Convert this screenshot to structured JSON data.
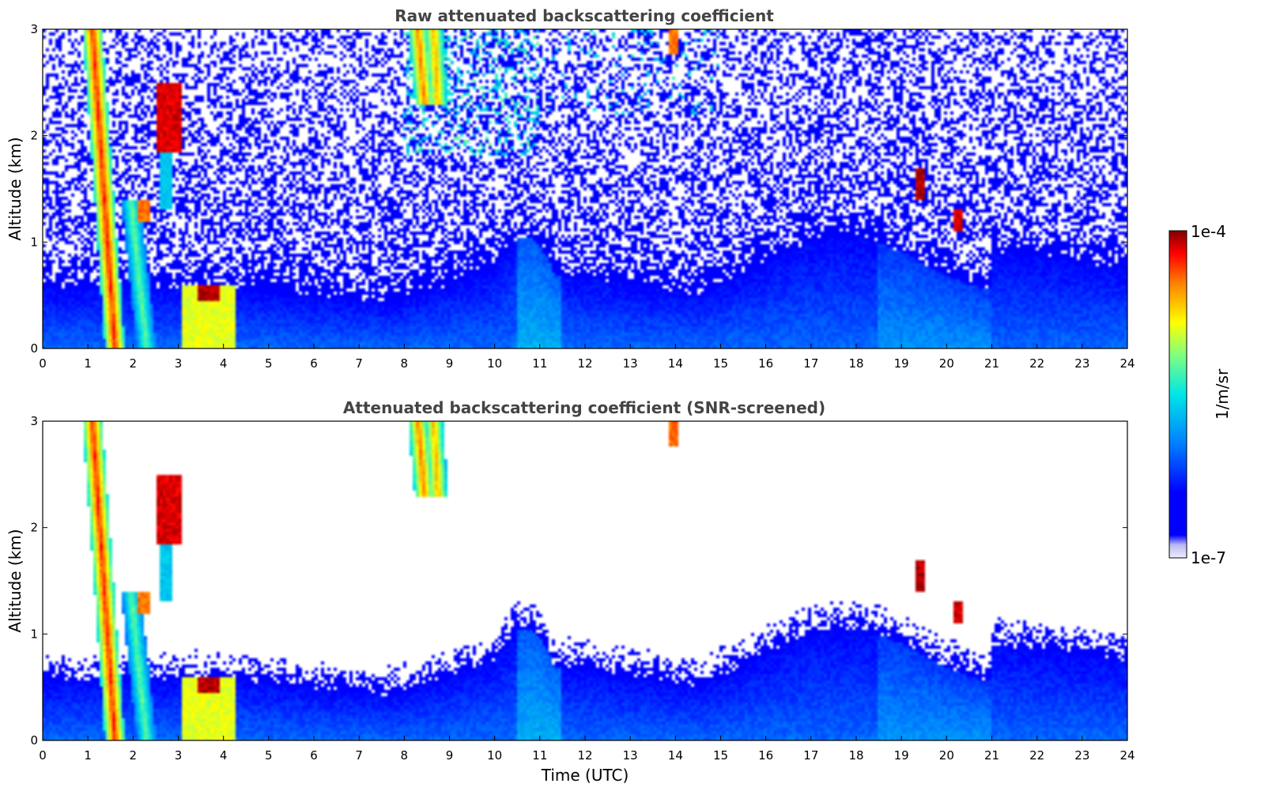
{
  "chart_data": [
    {
      "type": "heatmap",
      "title": "Raw attenuated backscattering coefficient",
      "xlabel": "",
      "ylabel": "Altitude (km)",
      "xlim": [
        0,
        24
      ],
      "ylim": [
        0,
        3
      ],
      "x_ticks": [
        "0",
        "1",
        "2",
        "3",
        "4",
        "5",
        "6",
        "7",
        "8",
        "9",
        "10",
        "11",
        "12",
        "13",
        "14",
        "15",
        "16",
        "17",
        "18",
        "19",
        "20",
        "21",
        "22",
        "23",
        "24"
      ],
      "y_ticks": [
        "0",
        "1",
        "2",
        "3"
      ],
      "screened": false,
      "features": [
        {
          "kind": "fall_streak",
          "t_top": 1.1,
          "t_bottom": 1.6,
          "z_top": 3.0,
          "z_bottom": 0.0,
          "level": 0.92
        },
        {
          "kind": "fall_streak",
          "t_top": 1.95,
          "t_bottom": 2.3,
          "z_top": 1.4,
          "z_bottom": 0.0,
          "level": 0.6
        },
        {
          "kind": "cloud",
          "t": [
            2.55,
            3.05
          ],
          "z": [
            1.85,
            2.5
          ],
          "level": 0.95
        },
        {
          "kind": "cloud",
          "t": [
            2.6,
            2.9
          ],
          "z": [
            1.3,
            1.9
          ],
          "level": 0.45
        },
        {
          "kind": "cloud",
          "t": [
            2.1,
            2.35
          ],
          "z": [
            1.2,
            1.4
          ],
          "level": 0.85
        },
        {
          "kind": "cloud",
          "t": [
            3.4,
            3.9
          ],
          "z": [
            0.45,
            0.58
          ],
          "level": 0.97
        },
        {
          "kind": "boundary_layer",
          "t": [
            3.1,
            4.3
          ],
          "z": [
            0.0,
            0.6
          ],
          "level": 0.7
        },
        {
          "kind": "fall_streak",
          "t_top": 8.3,
          "t_bottom": 8.45,
          "z_top": 3.0,
          "z_bottom": 2.3,
          "level": 0.85
        },
        {
          "kind": "fall_streak",
          "t_top": 8.65,
          "t_bottom": 8.75,
          "z_top": 3.0,
          "z_bottom": 2.3,
          "level": 0.8
        },
        {
          "kind": "cloud",
          "t": [
            13.85,
            14.05
          ],
          "z": [
            2.75,
            3.0
          ],
          "level": 0.85
        },
        {
          "kind": "cloud",
          "t": [
            19.3,
            19.5
          ],
          "z": [
            1.4,
            1.7
          ],
          "level": 0.97
        },
        {
          "kind": "cloud",
          "t": [
            20.15,
            20.35
          ],
          "z": [
            1.1,
            1.3
          ],
          "level": 0.95
        }
      ]
    },
    {
      "type": "heatmap",
      "title": "Attenuated backscattering coefficient (SNR-screened)",
      "xlabel": "Time (UTC)",
      "ylabel": "Altitude (km)",
      "xlim": [
        0,
        24
      ],
      "ylim": [
        0,
        3
      ],
      "x_ticks": [
        "0",
        "1",
        "2",
        "3",
        "4",
        "5",
        "6",
        "7",
        "8",
        "9",
        "10",
        "11",
        "12",
        "13",
        "14",
        "15",
        "16",
        "17",
        "18",
        "19",
        "20",
        "21",
        "22",
        "23",
        "24"
      ],
      "y_ticks": [
        "0",
        "1",
        "2",
        "3"
      ],
      "screened": true,
      "features": [
        {
          "kind": "fall_streak",
          "t_top": 1.1,
          "t_bottom": 1.6,
          "z_top": 3.0,
          "z_bottom": 0.0,
          "level": 0.92
        },
        {
          "kind": "fall_streak",
          "t_top": 1.95,
          "t_bottom": 2.3,
          "z_top": 1.4,
          "z_bottom": 0.0,
          "level": 0.6
        },
        {
          "kind": "cloud",
          "t": [
            2.55,
            3.05
          ],
          "z": [
            1.85,
            2.5
          ],
          "level": 0.95
        },
        {
          "kind": "cloud",
          "t": [
            2.6,
            2.9
          ],
          "z": [
            1.3,
            1.9
          ],
          "level": 0.45
        },
        {
          "kind": "cloud",
          "t": [
            2.1,
            2.35
          ],
          "z": [
            1.2,
            1.4
          ],
          "level": 0.85
        },
        {
          "kind": "cloud",
          "t": [
            3.4,
            3.9
          ],
          "z": [
            0.45,
            0.58
          ],
          "level": 0.97
        },
        {
          "kind": "boundary_layer",
          "t": [
            3.1,
            4.3
          ],
          "z": [
            0.0,
            0.6
          ],
          "level": 0.7
        },
        {
          "kind": "fall_streak",
          "t_top": 8.3,
          "t_bottom": 8.45,
          "z_top": 3.0,
          "z_bottom": 2.3,
          "level": 0.85
        },
        {
          "kind": "fall_streak",
          "t_top": 8.65,
          "t_bottom": 8.75,
          "z_top": 3.0,
          "z_bottom": 2.3,
          "level": 0.8
        },
        {
          "kind": "cloud",
          "t": [
            13.85,
            14.05
          ],
          "z": [
            2.75,
            3.0
          ],
          "level": 0.85
        },
        {
          "kind": "cloud",
          "t": [
            19.3,
            19.5
          ],
          "z": [
            1.4,
            1.7
          ],
          "level": 0.97
        },
        {
          "kind": "cloud",
          "t": [
            20.15,
            20.35
          ],
          "z": [
            1.1,
            1.3
          ],
          "level": 0.95
        }
      ]
    }
  ],
  "colorbar": {
    "label": "1/m/sr",
    "min_label": "1e-7",
    "max_label": "1e-4",
    "colormap": "jet",
    "scale": "log"
  },
  "colors": {
    "title": "#444444",
    "background": "#ffffff"
  }
}
